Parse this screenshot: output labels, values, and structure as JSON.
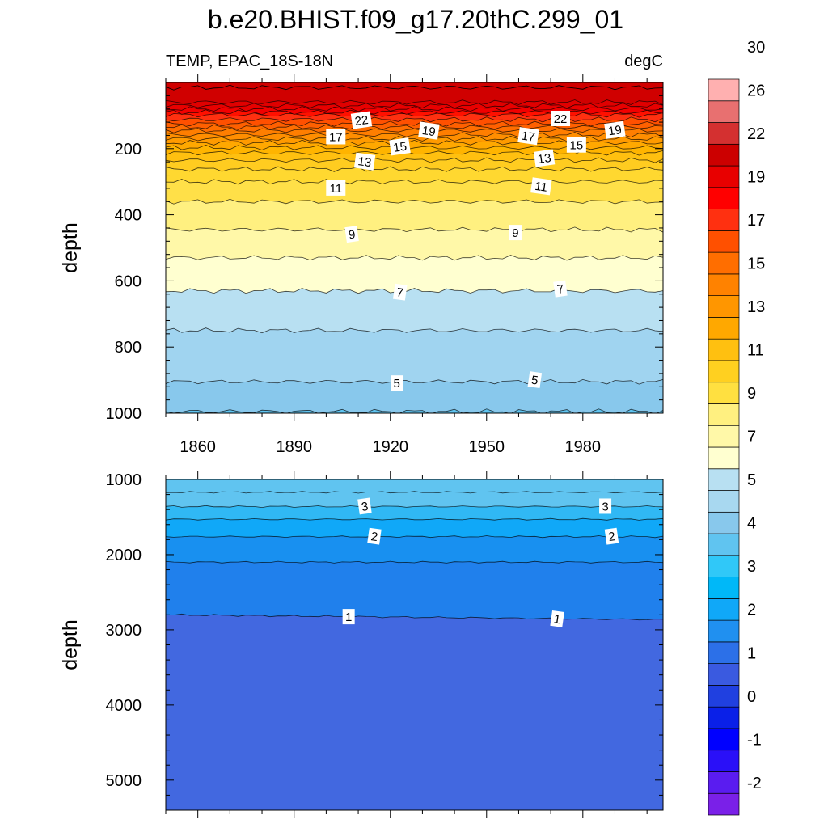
{
  "chart_data": {
    "title": "b.e20.BHIST.f09_g17.20thC.299_01",
    "left_subtitle": "TEMP, EPAC_18S-18N",
    "right_subtitle": "degC",
    "type": "heatmap",
    "x_ticks": [
      1860,
      1890,
      1920,
      1950,
      1980
    ],
    "xlim": [
      1850,
      2005
    ],
    "panels": [
      {
        "name": "upper",
        "ylabel": "depth",
        "ylim": [
          0,
          1000
        ],
        "y_ticks": [
          200,
          400,
          600,
          800,
          1000
        ],
        "levels": [
          {
            "value": 28,
            "depth": 15
          },
          {
            "value": 27,
            "depth": 60
          },
          {
            "value": 26,
            "depth": 70
          },
          {
            "value": 25,
            "depth": 80
          },
          {
            "value": 24,
            "depth": 90
          },
          {
            "value": 23,
            "depth": 98
          },
          {
            "value": 22,
            "depth": 112
          },
          {
            "value": 21,
            "depth": 125
          },
          {
            "value": 20,
            "depth": 135
          },
          {
            "value": 19,
            "depth": 145
          },
          {
            "value": 18,
            "depth": 158
          },
          {
            "value": 17,
            "depth": 170
          },
          {
            "value": 16,
            "depth": 182
          },
          {
            "value": 15,
            "depth": 197
          },
          {
            "value": 14,
            "depth": 213
          },
          {
            "value": 13,
            "depth": 235
          },
          {
            "value": 12,
            "depth": 262
          },
          {
            "value": 11,
            "depth": 300
          },
          {
            "value": 10,
            "depth": 360
          },
          {
            "value": 9,
            "depth": 445
          },
          {
            "value": 8,
            "depth": 530
          },
          {
            "value": 7,
            "depth": 630
          },
          {
            "value": 6,
            "depth": 750
          },
          {
            "value": 5,
            "depth": 905
          },
          {
            "value": 4,
            "depth": 995
          }
        ],
        "contour_labels": [
          {
            "text": "22",
            "year": 1911,
            "depth": 115
          },
          {
            "text": "22",
            "year": 1973,
            "depth": 110
          },
          {
            "text": "19",
            "year": 1932,
            "depth": 147
          },
          {
            "text": "19",
            "year": 1990,
            "depth": 145
          },
          {
            "text": "17",
            "year": 1903,
            "depth": 165
          },
          {
            "text": "17",
            "year": 1963,
            "depth": 163
          },
          {
            "text": "15",
            "year": 1923,
            "depth": 195
          },
          {
            "text": "15",
            "year": 1978,
            "depth": 190
          },
          {
            "text": "13",
            "year": 1912,
            "depth": 240
          },
          {
            "text": "13",
            "year": 1968,
            "depth": 230
          },
          {
            "text": "11",
            "year": 1903,
            "depth": 320
          },
          {
            "text": "11",
            "year": 1967,
            "depth": 315
          },
          {
            "text": "9",
            "year": 1908,
            "depth": 460
          },
          {
            "text": "9",
            "year": 1959,
            "depth": 455
          },
          {
            "text": "7",
            "year": 1923,
            "depth": 635
          },
          {
            "text": "7",
            "year": 1973,
            "depth": 625
          },
          {
            "text": "5",
            "year": 1922,
            "depth": 910
          },
          {
            "text": "5",
            "year": 1965,
            "depth": 900
          }
        ]
      },
      {
        "name": "lower",
        "ylabel": "depth",
        "ylim": [
          1000,
          5400
        ],
        "y_ticks": [
          1000,
          2000,
          3000,
          4000,
          5000
        ],
        "levels": [
          {
            "value": 4,
            "depth": 1170
          },
          {
            "value": 3.5,
            "depth": 1360
          },
          {
            "value": 3,
            "depth": 1530
          },
          {
            "value": 2.5,
            "depth": 1760
          },
          {
            "value": 2,
            "depth": 2100
          },
          {
            "value": 1.5,
            "depth": 2800
          }
        ],
        "contour_labels": [
          {
            "text": "3",
            "year": 1912,
            "depth": 1360
          },
          {
            "text": "3",
            "year": 1987,
            "depth": 1360
          },
          {
            "text": "2",
            "year": 1915,
            "depth": 1760
          },
          {
            "text": "2",
            "year": 1989,
            "depth": 1760
          },
          {
            "text": "1",
            "year": 1907,
            "depth": 2830
          },
          {
            "text": "1",
            "year": 1972,
            "depth": 2860
          }
        ]
      }
    ],
    "colorbar": {
      "colors": [
        "#7a20e8",
        "#5a1cf0",
        "#2a10f8",
        "#0000ff",
        "#0a20e8",
        "#2040e0",
        "#3a5ae0",
        "#2c70e8",
        "#2090f0",
        "#10a8f8",
        "#00b8f8",
        "#30c8f8",
        "#60c4f0",
        "#88c8ec",
        "#a8d8f0",
        "#b8e0f2",
        "#ffffd0",
        "#fff8a8",
        "#fff080",
        "#ffe040",
        "#ffd020",
        "#ffc010",
        "#ffa800",
        "#ff9600",
        "#ff8200",
        "#ff6e00",
        "#ff5000",
        "#ff3010",
        "#ff0000",
        "#e80000",
        "#cc0000",
        "#d43030",
        "#e87070",
        "#ffb0b0"
      ],
      "labels": [
        "-2",
        "-1",
        "0",
        "1",
        "2",
        "3",
        "4",
        "5",
        "7",
        "9",
        "11",
        "13",
        "15",
        "17",
        "19",
        "22",
        "26",
        "30"
      ],
      "label_boundary_index": [
        2,
        4,
        6,
        8,
        10,
        12,
        14,
        16,
        18,
        20,
        22,
        24,
        26,
        28,
        30,
        32,
        34,
        36
      ]
    },
    "level_colors": {
      "28": "#d00000",
      "27": "#e00000",
      "26": "#e80000",
      "25": "#f20000",
      "24": "#ff1000",
      "23": "#ff3010",
      "22": "#ff5000",
      "21": "#ff6000",
      "20": "#ff6e00",
      "19": "#ff7e00",
      "18": "#ff8e00",
      "17": "#ff9a00",
      "16": "#ffa800",
      "15": "#ffb400",
      "14": "#ffc010",
      "13": "#ffcc20",
      "12": "#ffd830",
      "11": "#ffe048",
      "10": "#fff080",
      "9": "#fff8a8",
      "8": "#ffffd0",
      "7": "#b8e0f2",
      "6": "#a0d4f0",
      "5": "#88c8ec",
      "4": "#60c4f0",
      "3.5": "#30b8f4",
      "3": "#10a8f8",
      "2.5": "#1890f0",
      "2": "#2080ec",
      "1.5": "#3070e0",
      "1": "#4268e0"
    },
    "colors": {
      "background": "#ffffff",
      "axis": "#000000",
      "contour": "#000000"
    }
  }
}
